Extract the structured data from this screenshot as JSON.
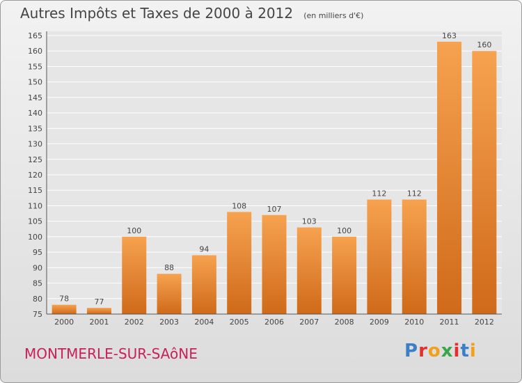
{
  "chart_data": {
    "type": "bar",
    "title": "Autres Impôts et Taxes de 2000 à 2012",
    "subtitle": "(en milliers d'€)",
    "categories": [
      "2000",
      "2001",
      "2002",
      "2003",
      "2004",
      "2005",
      "2006",
      "2007",
      "2008",
      "2009",
      "2010",
      "2011",
      "2012"
    ],
    "values": [
      78,
      77,
      100,
      88,
      94,
      108,
      107,
      103,
      100,
      112,
      112,
      163,
      160
    ],
    "ylim": [
      75,
      165
    ],
    "yticks": [
      75,
      80,
      85,
      90,
      95,
      100,
      105,
      110,
      115,
      120,
      125,
      130,
      135,
      140,
      145,
      150,
      155,
      160,
      165
    ],
    "grid": true,
    "legend": "none",
    "bar_color": "#f0923a"
  },
  "footer": {
    "commune": "MONTMERLE-SUR-SAôNE"
  },
  "logo": {
    "text": "Proxiti",
    "letter_colors": [
      "#3a7fc8",
      "#e2302f",
      "#f2a01a",
      "#3aa64a",
      "#e2302f",
      "#3a7fc8",
      "#f2a01a"
    ]
  }
}
